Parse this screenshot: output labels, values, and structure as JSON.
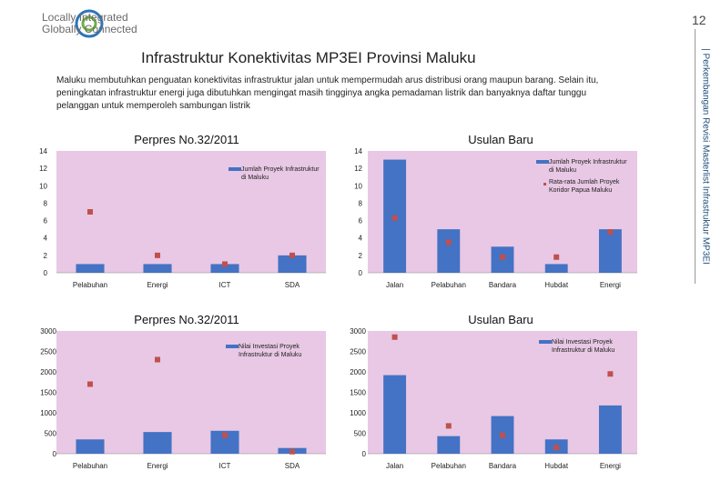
{
  "header": {
    "logo_line1": "Locally Integrated",
    "logo_line2": "Globally Connected",
    "page_number": "12",
    "side_text": "| Perkembangan Revisi Masterlist Infrastruktur MP3EI"
  },
  "title": "Infrastruktur Konektivitas MP3EI Provinsi Maluku",
  "paragraph": "Maluku membutuhkan penguatan konektivitas infrastruktur jalan untuk mempermudah arus distribusi orang maupun barang. Selain itu, peningkatan infrastruktur energi juga dibutuhkan mengingat masih tingginya angka pemadaman listrik dan banyaknya daftar tunggu pelanggan untuk memperoleh sambungan listrik",
  "colors": {
    "bar": "#4472c4",
    "marker": "#c0504d",
    "plot_bg": "#e8c8e4"
  },
  "chart_data": [
    {
      "type": "bar",
      "title": "Perpres No.32/2011",
      "categories": [
        "Pelabuhan",
        "Energi",
        "ICT",
        "SDA"
      ],
      "series": [
        {
          "name": "Jumlah Proyek Infrastruktur di Maluku",
          "kind": "bar",
          "values": [
            1,
            1,
            1,
            2
          ]
        },
        {
          "name": "",
          "kind": "marker",
          "values": [
            7,
            2,
            1,
            2
          ]
        }
      ],
      "yticks": [
        "0",
        "2",
        "4",
        "6",
        "8",
        "10",
        "12",
        "14"
      ],
      "ylim": [
        0,
        14
      ],
      "legend": [
        "Jumlah Proyek Infrastruktur di Maluku"
      ]
    },
    {
      "type": "bar",
      "title": "Usulan Baru",
      "categories": [
        "Jalan",
        "Pelabuhan",
        "Bandara",
        "Hubdat",
        "Energi"
      ],
      "series": [
        {
          "name": "Jumlah Proyek Infrastruktur di Maluku",
          "kind": "bar",
          "values": [
            13,
            5,
            3,
            1,
            5
          ]
        },
        {
          "name": "Rata-rata Jumlah Proyek Koridor Papua Maluku",
          "kind": "marker",
          "values": [
            6.3,
            3.5,
            1.8,
            1.8,
            4.7
          ]
        }
      ],
      "yticks": [
        "0",
        "2",
        "4",
        "6",
        "8",
        "10",
        "12",
        "14"
      ],
      "ylim": [
        0,
        14
      ],
      "legend": [
        "Jumlah Proyek Infrastruktur di Maluku",
        "Rata-rata Jumlah Proyek Koridor Papua Maluku"
      ]
    },
    {
      "type": "bar",
      "title": "Perpres No.32/2011",
      "categories": [
        "Pelabuhan",
        "Energi",
        "ICT",
        "SDA"
      ],
      "series": [
        {
          "name": "Nilai Investasi Proyek Infrastruktur di Maluku",
          "kind": "bar",
          "values": [
            350,
            530,
            560,
            140
          ]
        },
        {
          "name": "",
          "kind": "marker",
          "values": [
            1700,
            2300,
            450,
            50
          ]
        }
      ],
      "yticks": [
        "0",
        "500",
        "1000",
        "1500",
        "2000",
        "2500",
        "3000"
      ],
      "ylim": [
        0,
        3000
      ],
      "legend": [
        "Nilai Investasi Proyek Infrastruktur di Maluku"
      ]
    },
    {
      "type": "bar",
      "title": "Usulan Baru",
      "categories": [
        "Jalan",
        "Pelabuhan",
        "Bandara",
        "Hubdat",
        "Energi"
      ],
      "series": [
        {
          "name": "Nilai Investasi Proyek Infrastruktur di Maluku",
          "kind": "bar",
          "values": [
            1920,
            430,
            920,
            350,
            1180
          ]
        },
        {
          "name": "",
          "kind": "marker",
          "values": [
            2850,
            680,
            450,
            150,
            1950
          ]
        }
      ],
      "yticks": [
        "0",
        "500",
        "1000",
        "1500",
        "2000",
        "2500",
        "3000"
      ],
      "ylim": [
        0,
        3000
      ],
      "legend": [
        "Nilai Investasi Proyek Infrastruktur di Maluku"
      ]
    }
  ]
}
